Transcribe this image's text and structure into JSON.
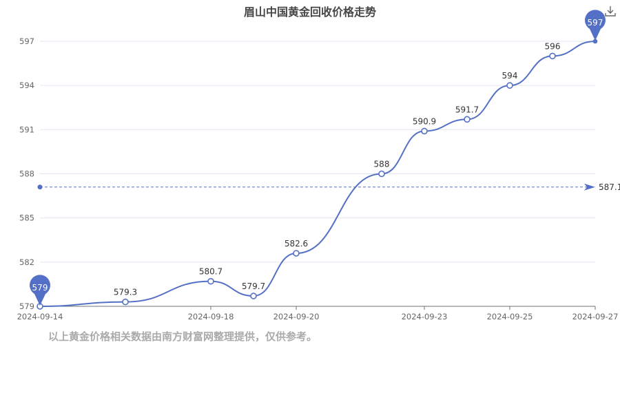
{
  "chart_data": {
    "type": "line",
    "title": "眉山中国黄金回收价格走势",
    "x": [
      "2024-09-14",
      "2024-09-16",
      "2024-09-18",
      "2024-09-19",
      "2024-09-20",
      "2024-09-22",
      "2024-09-23",
      "2024-09-24",
      "2024-09-25",
      "2024-09-26",
      "2024-09-27"
    ],
    "xticks": [
      "2024-09-14",
      "2024-09-18",
      "2024-09-20",
      "2024-09-23",
      "2024-09-25",
      "2024-09-27"
    ],
    "values": [
      579,
      579.3,
      580.7,
      579.7,
      582.6,
      588,
      590.9,
      591.7,
      594,
      596,
      597
    ],
    "data_labels": [
      "579",
      "579.3",
      "580.7",
      "579.7",
      "582.6",
      "588",
      "590.9",
      "591.7",
      "594",
      "596",
      "597"
    ],
    "yticks": [
      579,
      582,
      585,
      588,
      591,
      594,
      597
    ],
    "ylim": [
      579,
      597
    ],
    "average": 587.1,
    "average_label": "587.1",
    "min_pin": "579",
    "max_pin": "597",
    "grid": true,
    "color": "#5470c6"
  },
  "footnote": "以上黄金价格相关数据由南方财富网整理提供，仅供参考。"
}
